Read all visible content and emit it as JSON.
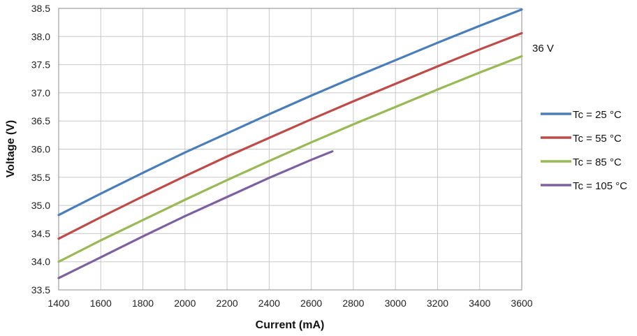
{
  "chart_data": {
    "type": "line",
    "xlabel": "Current (mA)",
    "ylabel": "Voltage (V)",
    "xlim": [
      1400,
      3600
    ],
    "ylim": [
      33.5,
      38.5
    ],
    "xticks": [
      1400,
      1600,
      1800,
      2000,
      2200,
      2400,
      2600,
      2800,
      3000,
      3200,
      3400,
      3600
    ],
    "yticks": [
      33.5,
      34.0,
      34.5,
      35.0,
      35.5,
      36.0,
      36.5,
      37.0,
      37.5,
      38.0,
      38.5
    ],
    "xtick_labels": [
      "1400",
      "1600",
      "1800",
      "2000",
      "2200",
      "2400",
      "2600",
      "2800",
      "3000",
      "3200",
      "3400",
      "3600"
    ],
    "ytick_labels": [
      "33.5",
      "34.0",
      "34.5",
      "35.0",
      "35.5",
      "36.0",
      "36.5",
      "37.0",
      "37.5",
      "38.0",
      "38.5"
    ],
    "grid": true,
    "legend_position": "right",
    "annotation": {
      "text": "36 V"
    },
    "series": [
      {
        "name": "Tc = 25 °C",
        "color": "#4a7ebb",
        "x": [
          1400,
          1600,
          1800,
          2000,
          2200,
          2400,
          2600,
          2800,
          3000,
          3200,
          3400,
          3600
        ],
        "y": [
          34.83,
          35.21,
          35.58,
          35.94,
          36.28,
          36.62,
          36.95,
          37.27,
          37.58,
          37.89,
          38.19,
          38.48
        ]
      },
      {
        "name": "Tc = 55 °C",
        "color": "#be4b48",
        "x": [
          1400,
          1600,
          1800,
          2000,
          2200,
          2400,
          2600,
          2800,
          3000,
          3200,
          3400,
          3600
        ],
        "y": [
          34.41,
          34.79,
          35.16,
          35.52,
          35.87,
          36.2,
          36.53,
          36.85,
          37.16,
          37.47,
          37.77,
          38.06
        ]
      },
      {
        "name": "Tc = 85 °C",
        "color": "#98b954",
        "x": [
          1400,
          1600,
          1800,
          2000,
          2200,
          2400,
          2600,
          2800,
          3000,
          3200,
          3400,
          3600
        ],
        "y": [
          34.0,
          34.38,
          34.74,
          35.1,
          35.45,
          35.79,
          36.12,
          36.44,
          36.75,
          37.06,
          37.36,
          37.65
        ]
      },
      {
        "name": "Tc = 105 °C",
        "color": "#7d60a0",
        "x": [
          1400,
          1600,
          1800,
          2000,
          2200,
          2400,
          2600,
          2700
        ],
        "y": [
          33.71,
          34.08,
          34.45,
          34.81,
          35.15,
          35.49,
          35.81,
          35.96
        ]
      }
    ]
  }
}
